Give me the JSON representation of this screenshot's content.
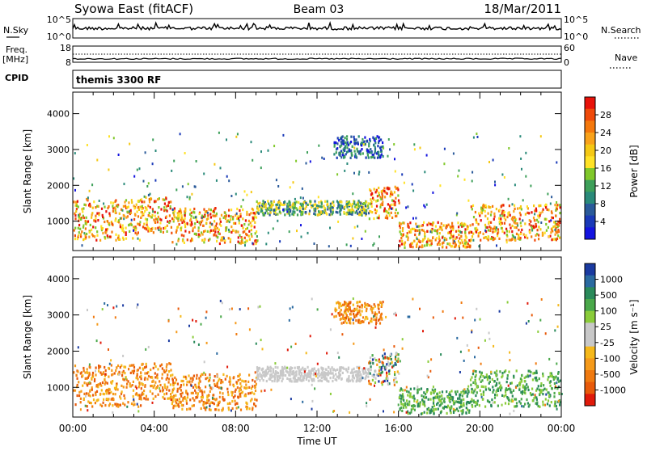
{
  "header": {
    "station": "Syowa East (fitACF)",
    "beam": "Beam 03",
    "date": "18/Mar/2011"
  },
  "top_panels": {
    "nsky_label": "N.Sky",
    "nsky_ticks": [
      "10^5",
      "10^0"
    ],
    "nsearch_label": "N.Search",
    "nsearch_ticks": [
      "10^5",
      "10^0"
    ],
    "freq_label_1": "Freq.",
    "freq_label_2": "[MHz]",
    "freq_ticks": [
      "18",
      "8"
    ],
    "nave_label": "Nave",
    "nave_ticks": [
      "60",
      "0"
    ],
    "cpid_label": "CPID",
    "cpid_value": "themis 3300 RF"
  },
  "colorbars": {
    "power": {
      "label": "Power [dB]",
      "ticks": [
        "28",
        "24",
        "20",
        "16",
        "12",
        "8",
        "4"
      ],
      "colors": [
        "#e8120a",
        "#f04a0a",
        "#f5780c",
        "#f9a21a",
        "#f5c814",
        "#ffe226",
        "#80c82a",
        "#3ea05a",
        "#2a8a7a",
        "#2a5a9a",
        "#1a3ab8",
        "#1414e0"
      ]
    },
    "velocity": {
      "label": "Velocity [m s⁻¹]",
      "ticks": [
        "1000",
        "500",
        "100",
        "25",
        "-25",
        "-100",
        "-500",
        "-1000"
      ],
      "colors": [
        "#1a3aa0",
        "#2a6aa0",
        "#2a8a5a",
        "#4aa84a",
        "#8acc3a",
        "#c8c8c8",
        "#c8c8c8",
        "#f5b81a",
        "#f59a1a",
        "#f07a10",
        "#e85a0a",
        "#e01a0a"
      ]
    }
  },
  "chart_data": [
    {
      "type": "heatmap",
      "panel": "power",
      "ylabel": "Slant Range [km]",
      "yticks": [
        1000,
        2000,
        3000,
        4000
      ],
      "ylim": [
        180,
        4600
      ],
      "xlim_hours": [
        0,
        24
      ],
      "bands": [
        {
          "start": 0.0,
          "end": 3.3,
          "min": 500,
          "max": 1650,
          "color_level": "high"
        },
        {
          "start": 3.3,
          "end": 4.8,
          "min": 700,
          "max": 1700,
          "color_level": "high"
        },
        {
          "start": 4.8,
          "end": 9.0,
          "min": 400,
          "max": 1400,
          "color_level": "high"
        },
        {
          "start": 9.0,
          "end": 14.5,
          "min": 1200,
          "max": 1600,
          "color_level": "mid"
        },
        {
          "start": 12.8,
          "end": 15.2,
          "min": 2800,
          "max": 3400,
          "color_level": "low"
        },
        {
          "start": 14.5,
          "end": 16.0,
          "min": 1100,
          "max": 2000,
          "color_level": "high"
        },
        {
          "start": 16.0,
          "end": 19.5,
          "min": 300,
          "max": 1000,
          "color_level": "high"
        },
        {
          "start": 19.5,
          "end": 24.0,
          "min": 500,
          "max": 1500,
          "color_level": "high"
        }
      ]
    },
    {
      "type": "heatmap",
      "panel": "velocity",
      "ylabel": "Slant Range [km]",
      "yticks": [
        1000,
        2000,
        3000,
        4000
      ],
      "ylim": [
        180,
        4600
      ],
      "xlim_hours": [
        0,
        24
      ],
      "bands": [
        {
          "start": 0.0,
          "end": 3.3,
          "min": 500,
          "max": 1650,
          "color_level": "neg"
        },
        {
          "start": 3.3,
          "end": 4.8,
          "min": 700,
          "max": 1700,
          "color_level": "neg"
        },
        {
          "start": 4.8,
          "end": 9.0,
          "min": 400,
          "max": 1400,
          "color_level": "neg"
        },
        {
          "start": 9.0,
          "end": 14.5,
          "min": 1200,
          "max": 1600,
          "color_level": "zero"
        },
        {
          "start": 12.8,
          "end": 15.2,
          "min": 2800,
          "max": 3400,
          "color_level": "neg"
        },
        {
          "start": 14.5,
          "end": 16.0,
          "min": 1100,
          "max": 2000,
          "color_level": "mixed"
        },
        {
          "start": 16.0,
          "end": 19.5,
          "min": 300,
          "max": 1000,
          "color_level": "pos"
        },
        {
          "start": 19.5,
          "end": 24.0,
          "min": 500,
          "max": 1500,
          "color_level": "pos"
        }
      ]
    }
  ],
  "x_axis": {
    "ticks": [
      "00:00",
      "04:00",
      "08:00",
      "12:00",
      "16:00",
      "20:00",
      "00:00"
    ],
    "label": "Time UT"
  }
}
